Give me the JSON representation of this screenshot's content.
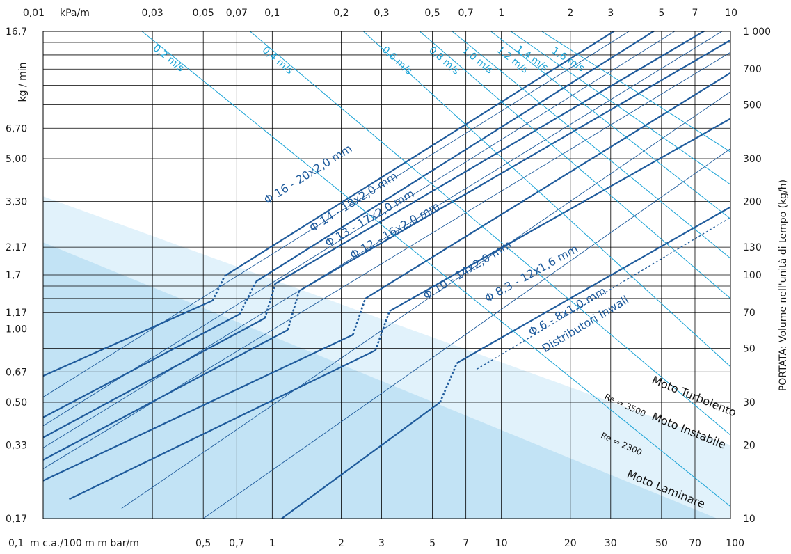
{
  "chart_data": {
    "type": "line",
    "x_scale": "log",
    "y_scale": "log",
    "xlim": [
      0.1,
      100
    ],
    "ylim": [
      10,
      1000
    ],
    "grid": true,
    "top_axis": {
      "unit": "kPa/m",
      "ticks": [
        {
          "v": 0.1,
          "label": "0,01"
        },
        {
          "v": 0.3,
          "label": "0,03"
        },
        {
          "v": 0.5,
          "label": "0,05"
        },
        {
          "v": 0.7,
          "label": "0,07"
        },
        {
          "v": 1,
          "label": "0,1"
        },
        {
          "v": 2,
          "label": "0,2"
        },
        {
          "v": 3,
          "label": "0,3"
        },
        {
          "v": 5,
          "label": "0,5"
        },
        {
          "v": 7,
          "label": "0,7"
        },
        {
          "v": 10,
          "label": "1"
        },
        {
          "v": 20,
          "label": "2"
        },
        {
          "v": 30,
          "label": "3"
        },
        {
          "v": 50,
          "label": "5"
        },
        {
          "v": 70,
          "label": "7"
        },
        {
          "v": 100,
          "label": "10"
        }
      ]
    },
    "bottom_axis": {
      "unit": "m c.a./100 m  m bar/m",
      "ticks": [
        {
          "v": 0.1,
          "label": "0,1"
        },
        {
          "v": 0.5,
          "label": "0,5"
        },
        {
          "v": 0.7,
          "label": "0,7"
        },
        {
          "v": 1,
          "label": "1"
        },
        {
          "v": 2,
          "label": "2"
        },
        {
          "v": 3,
          "label": "3"
        },
        {
          "v": 5,
          "label": "5"
        },
        {
          "v": 7,
          "label": "7"
        },
        {
          "v": 10,
          "label": "10"
        },
        {
          "v": 20,
          "label": "20"
        },
        {
          "v": 30,
          "label": "30"
        },
        {
          "v": 50,
          "label": "50"
        },
        {
          "v": 70,
          "label": "70"
        },
        {
          "v": 100,
          "label": "100"
        }
      ]
    },
    "left_axis": {
      "label": "kg / min",
      "ticks": [
        {
          "v": 1000,
          "label": "16,7"
        },
        {
          "v": 400,
          "label": "6,70"
        },
        {
          "v": 300,
          "label": "5,00"
        },
        {
          "v": 200,
          "label": "3,30"
        },
        {
          "v": 130,
          "label": "2,17"
        },
        {
          "v": 100,
          "label": "1,7"
        },
        {
          "v": 70,
          "label": "1,17"
        },
        {
          "v": 60,
          "label": "1,00"
        },
        {
          "v": 40,
          "label": "0,67"
        },
        {
          "v": 30,
          "label": "0,50"
        },
        {
          "v": 20,
          "label": "0,33"
        },
        {
          "v": 10,
          "label": "0,17"
        }
      ]
    },
    "right_axis": {
      "label": "PORTATA: Volume nell'unità di tempo  (kg/h)",
      "ticks": [
        {
          "v": 1000,
          "label": "1 000"
        },
        {
          "v": 700,
          "label": "700"
        },
        {
          "v": 500,
          "label": "500"
        },
        {
          "v": 300,
          "label": "300"
        },
        {
          "v": 200,
          "label": "200"
        },
        {
          "v": 130,
          "label": "130"
        },
        {
          "v": 100,
          "label": "100"
        },
        {
          "v": 70,
          "label": "70"
        },
        {
          "v": 50,
          "label": "50"
        },
        {
          "v": 30,
          "label": "30"
        },
        {
          "v": 20,
          "label": "20"
        },
        {
          "v": 10,
          "label": "10"
        }
      ]
    },
    "extra_grid_y": [
      900,
      800,
      600,
      90,
      80
    ],
    "series": [
      {
        "name": "Φ 16 - 20x2,0 mm",
        "label_at": [
          0.95,
          195
        ],
        "segments": [
          {
            "style": "solid",
            "points": [
              [
                0.1,
                38.5
              ],
              [
                0.55,
                78.5
              ]
            ]
          },
          {
            "style": "dashed",
            "points": [
              [
                0.55,
                78.5
              ],
              [
                0.62,
                99
              ]
            ]
          },
          {
            "style": "solid",
            "points": [
              [
                0.62,
                99
              ],
              [
                100,
                2000
              ]
            ]
          }
        ]
      },
      {
        "name": "Φ 14 - 18x2,0 mm",
        "label_at": [
          1.5,
          150
        ],
        "segments": [
          {
            "style": "solid",
            "points": [
              [
                0.1,
                26
              ],
              [
                0.72,
                69
              ]
            ]
          },
          {
            "style": "dashed",
            "points": [
              [
                0.72,
                69
              ],
              [
                0.85,
                94
              ]
            ]
          },
          {
            "style": "solid",
            "points": [
              [
                0.85,
                94
              ],
              [
                100,
                1580
              ]
            ]
          }
        ]
      },
      {
        "name": "Φ 13 - 17x2,0 mm",
        "label_at": [
          1.75,
          130
        ],
        "segments": [
          {
            "style": "solid",
            "points": [
              [
                0.1,
                21.5
              ],
              [
                0.93,
                66.5
              ]
            ]
          },
          {
            "style": "dashed",
            "points": [
              [
                0.93,
                66.5
              ],
              [
                1.03,
                92
              ]
            ]
          },
          {
            "style": "solid",
            "points": [
              [
                1.03,
                92
              ],
              [
                100,
                1160
              ]
            ]
          }
        ]
      },
      {
        "name": "Φ 12 - 16x2,0 mm",
        "label_at": [
          2.25,
          116
        ],
        "segments": [
          {
            "style": "solid",
            "points": [
              [
                0.1,
                17.4
              ],
              [
                1.17,
                59.5
              ]
            ]
          },
          {
            "style": "dashed",
            "points": [
              [
                1.17,
                59.5
              ],
              [
                1.31,
                86
              ]
            ]
          },
          {
            "style": "solid",
            "points": [
              [
                1.31,
                86
              ],
              [
                100,
                920
              ]
            ]
          }
        ]
      },
      {
        "name": "Φ 10 - 14x2,0 mm",
        "label_at": [
          4.7,
          79
        ],
        "segments": [
          {
            "style": "solid",
            "points": [
              [
                0.1,
                14.3
              ],
              [
                2.25,
                56.8
              ]
            ]
          },
          {
            "style": "dashed",
            "points": [
              [
                2.25,
                56.8
              ],
              [
                2.55,
                80
              ]
            ]
          },
          {
            "style": "solid",
            "points": [
              [
                2.55,
                80
              ],
              [
                100,
                675
              ]
            ]
          }
        ]
      },
      {
        "name": "Φ 8,3 - 12x1,6 mm",
        "label_at": [
          8.7,
          77
        ],
        "segments": [
          {
            "style": "solid",
            "points": [
              [
                0.13,
                12
              ],
              [
                2.82,
                49
              ]
            ]
          },
          {
            "style": "dashed",
            "points": [
              [
                2.82,
                49
              ],
              [
                3.25,
                71
              ]
            ]
          },
          {
            "style": "solid",
            "points": [
              [
                3.25,
                71
              ],
              [
                100,
                438
              ]
            ]
          }
        ]
      },
      {
        "name": "Φ 6 - 8x1,0 mm",
        "label_at": [
          13.5,
          56
        ],
        "segments": [
          {
            "style": "solid",
            "points": [
              [
                1.1,
                10
              ],
              [
                5.4,
                30
              ]
            ]
          },
          {
            "style": "dashed",
            "points": [
              [
                5.4,
                30
              ],
              [
                6.4,
                43.5
              ]
            ]
          },
          {
            "style": "solid",
            "points": [
              [
                6.4,
                43.5
              ],
              [
                100,
                190
              ]
            ]
          }
        ]
      },
      {
        "name": "Distributori Inwall",
        "label_at": [
          15.5,
          48
        ],
        "segments": [
          {
            "style": "dotted",
            "points": [
              [
                7.8,
                41
              ],
              [
                100,
                172
              ]
            ]
          }
        ]
      }
    ],
    "extra_thin_lines": [
      [
        [
          0.1,
          31.5
        ],
        [
          100,
          1820
        ]
      ],
      [
        [
          0.1,
          24
        ],
        [
          100,
          1390
        ]
      ],
      [
        [
          0.1,
          19.5
        ],
        [
          100,
          1050
        ]
      ],
      [
        [
          0.1,
          16
        ],
        [
          100,
          820
        ]
      ],
      [
        [
          0.22,
          11
        ],
        [
          100,
          565
        ]
      ],
      [
        [
          0.5,
          10
        ],
        [
          100,
          330
        ]
      ]
    ],
    "velocity_lines": [
      {
        "label": "0,2 m/s",
        "from": [
          0.27,
          1000
        ],
        "to": [
          100,
          11.2
        ],
        "label_at": [
          0.3,
          845
        ]
      },
      {
        "label": "0,4 m/s",
        "from": [
          0.8,
          1000
        ],
        "to": [
          100,
          22
        ],
        "label_at": [
          0.9,
          830
        ]
      },
      {
        "label": "0,6 m/s",
        "from": [
          2.5,
          1000
        ],
        "to": [
          100,
          42
        ],
        "label_at": [
          3,
          835
        ]
      },
      {
        "label": "0,8 m/s",
        "from": [
          4.4,
          1000
        ],
        "to": [
          100,
          80
        ],
        "label_at": [
          4.8,
          830
        ]
      },
      {
        "label": "1,0 m/s",
        "from": [
          6.1,
          1000
        ],
        "to": [
          100,
          117
        ],
        "label_at": [
          6.7,
          830
        ]
      },
      {
        "label": "1,2 m/s",
        "from": [
          9.0,
          1000
        ],
        "to": [
          100,
          170
        ],
        "label_at": [
          9.5,
          830
        ]
      },
      {
        "label": "1,4 m/s",
        "from": [
          11.0,
          1000
        ],
        "to": [
          100,
          235
        ],
        "label_at": [
          11.5,
          835
        ]
      },
      {
        "label": "1,6 m/s",
        "from": [
          15.0,
          1000
        ],
        "to": [
          100,
          320
        ],
        "label_at": [
          16.5,
          820
        ]
      }
    ],
    "zones": [
      {
        "name": "Moto Turbolento",
        "label_at": [
          45,
          36
        ],
        "rotate": 22
      },
      {
        "name": "Moto Instabile",
        "label_at": [
          45,
          25.5
        ],
        "rotate": 22
      },
      {
        "name": "Moto Laminare",
        "label_at": [
          35,
          14.8
        ],
        "rotate": 22
      }
    ],
    "reynolds": [
      {
        "label": "Re = 3500",
        "label_at": [
          28,
          31
        ],
        "rotate": 24
      },
      {
        "label": "Re = 2300",
        "label_at": [
          27,
          21.5
        ],
        "rotate": 24
      }
    ],
    "boundaries": {
      "laminar_upper": [
        [
          0.1,
          136
        ],
        [
          100,
          9.5
        ]
      ],
      "instable_upper": [
        [
          0.1,
          210
        ],
        [
          100,
          20
        ]
      ]
    }
  },
  "colors": {
    "pipe": "#1f5b9c",
    "velocity": "#1aa3d6",
    "laminar_fill": "#c2e3f5",
    "instable_fill": "#e1f2fb",
    "grid": "#000000"
  }
}
